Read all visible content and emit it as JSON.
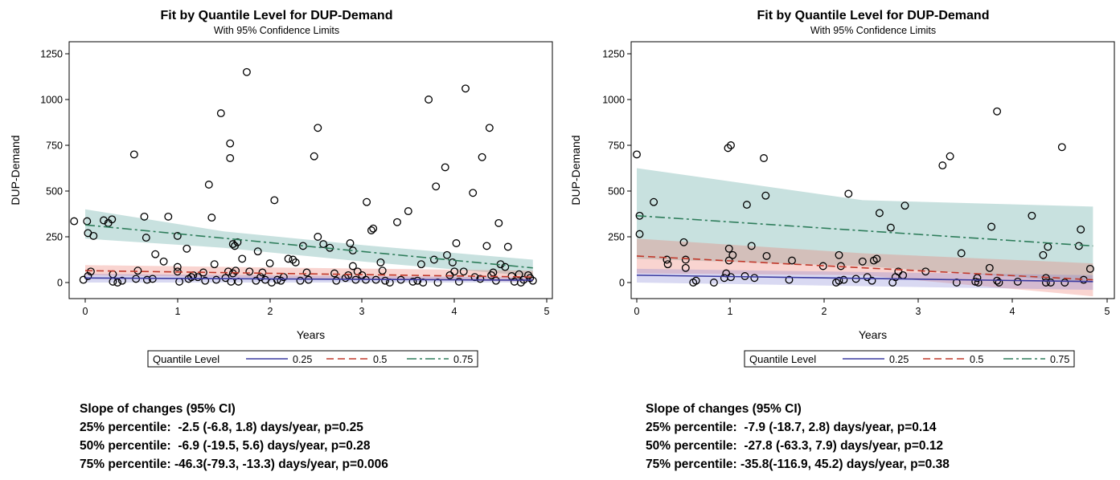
{
  "chart_data": [
    {
      "type": "scatter",
      "title": "Fit by Quantile Level for DUP-Demand",
      "subtitle": "With 95% Confidence Limits",
      "xlabel": "Years",
      "ylabel": "DUP-Demand",
      "xlim": [
        -0.1,
        4.9
      ],
      "ylim": [
        -60,
        1300
      ],
      "xticks": [
        "0",
        "1",
        "2",
        "3",
        "4",
        "5"
      ],
      "yticks": [
        "0",
        "250",
        "500",
        "750",
        "1000",
        "1250"
      ],
      "grid": false,
      "legend": {
        "title": "Quantile Level",
        "entries": [
          "0.25",
          "0.5",
          "0.75"
        ],
        "placement": "bottom"
      },
      "series": [
        {
          "name": "0.25",
          "style": "solid",
          "color": "#3a3aa0",
          "line": [
            [
              0,
              25
            ],
            [
              4.85,
              13
            ]
          ],
          "band": [
            [
              0,
              0
            ],
            [
              4.85,
              0
            ],
            [
              4.85,
              28
            ],
            [
              0,
              48
            ]
          ]
        },
        {
          "name": "0.5",
          "style": "dashed",
          "color": "#c0392b",
          "line": [
            [
              0,
              65
            ],
            [
              4.85,
              30
            ]
          ],
          "band": [
            [
              0,
              40
            ],
            [
              4.85,
              5
            ],
            [
              4.85,
              65
            ],
            [
              0,
              95
            ]
          ]
        },
        {
          "name": "0.75",
          "style": "dashdot",
          "color": "#2e7d5b",
          "line": [
            [
              0,
              315
            ],
            [
              4.85,
              80
            ]
          ],
          "band": [
            [
              0,
              240
            ],
            [
              1.5,
              190
            ],
            [
              3,
              115
            ],
            [
              4.85,
              35
            ],
            [
              4.85,
              125
            ],
            [
              3,
              205
            ],
            [
              1.5,
              280
            ],
            [
              0,
              400
            ]
          ]
        }
      ],
      "points": [
        [
          -0.12,
          335
        ],
        [
          0.02,
          335
        ],
        [
          0.2,
          340
        ],
        [
          0.25,
          325
        ],
        [
          0.29,
          345
        ],
        [
          0.03,
          270
        ],
        [
          0.09,
          255
        ],
        [
          -0.02,
          15
        ],
        [
          0.03,
          35
        ],
        [
          0.06,
          60
        ],
        [
          0.3,
          45
        ],
        [
          0.3,
          5
        ],
        [
          0.35,
          0
        ],
        [
          0.4,
          10
        ],
        [
          0.53,
          700
        ],
        [
          0.55,
          20
        ],
        [
          0.57,
          65
        ],
        [
          0.64,
          360
        ],
        [
          0.66,
          245
        ],
        [
          0.67,
          15
        ],
        [
          0.73,
          20
        ],
        [
          0.76,
          155
        ],
        [
          0.85,
          115
        ],
        [
          0.9,
          360
        ],
        [
          1.0,
          255
        ],
        [
          1.0,
          85
        ],
        [
          1.0,
          60
        ],
        [
          1.02,
          5
        ],
        [
          1.1,
          185
        ],
        [
          1.12,
          20
        ],
        [
          1.15,
          30
        ],
        [
          1.17,
          40
        ],
        [
          1.22,
          30
        ],
        [
          1.28,
          55
        ],
        [
          1.3,
          10
        ],
        [
          1.34,
          535
        ],
        [
          1.37,
          355
        ],
        [
          1.4,
          100
        ],
        [
          1.42,
          15
        ],
        [
          1.47,
          925
        ],
        [
          1.52,
          25
        ],
        [
          1.55,
          60
        ],
        [
          1.57,
          760
        ],
        [
          1.57,
          680
        ],
        [
          1.6,
          210
        ],
        [
          1.6,
          50
        ],
        [
          1.62,
          200
        ],
        [
          1.63,
          65
        ],
        [
          1.65,
          220
        ],
        [
          1.66,
          5
        ],
        [
          1.58,
          5
        ],
        [
          1.7,
          130
        ],
        [
          1.75,
          1150
        ],
        [
          1.78,
          60
        ],
        [
          1.85,
          10
        ],
        [
          1.87,
          170
        ],
        [
          1.9,
          30
        ],
        [
          1.92,
          55
        ],
        [
          1.95,
          15
        ],
        [
          2.0,
          105
        ],
        [
          2.02,
          0
        ],
        [
          2.05,
          450
        ],
        [
          2.08,
          15
        ],
        [
          2.12,
          10
        ],
        [
          2.15,
          30
        ],
        [
          2.2,
          130
        ],
        [
          2.25,
          125
        ],
        [
          2.28,
          110
        ],
        [
          2.33,
          10
        ],
        [
          2.36,
          200
        ],
        [
          2.4,
          55
        ],
        [
          2.42,
          15
        ],
        [
          2.48,
          690
        ],
        [
          2.52,
          845
        ],
        [
          2.52,
          250
        ],
        [
          2.58,
          210
        ],
        [
          2.65,
          190
        ],
        [
          2.7,
          50
        ],
        [
          2.72,
          10
        ],
        [
          2.82,
          25
        ],
        [
          2.85,
          40
        ],
        [
          2.87,
          215
        ],
        [
          2.9,
          175
        ],
        [
          2.9,
          90
        ],
        [
          2.93,
          15
        ],
        [
          2.95,
          60
        ],
        [
          3.0,
          40
        ],
        [
          3.04,
          15
        ],
        [
          3.05,
          440
        ],
        [
          3.1,
          285
        ],
        [
          3.12,
          295
        ],
        [
          3.15,
          15
        ],
        [
          3.2,
          110
        ],
        [
          3.22,
          65
        ],
        [
          3.25,
          10
        ],
        [
          3.3,
          0
        ],
        [
          3.38,
          330
        ],
        [
          3.42,
          15
        ],
        [
          3.5,
          390
        ],
        [
          3.55,
          5
        ],
        [
          3.6,
          10
        ],
        [
          3.64,
          100
        ],
        [
          3.66,
          0
        ],
        [
          3.72,
          1000
        ],
        [
          3.78,
          125
        ],
        [
          3.8,
          525
        ],
        [
          3.82,
          0
        ],
        [
          3.9,
          630
        ],
        [
          3.92,
          150
        ],
        [
          3.95,
          40
        ],
        [
          3.98,
          110
        ],
        [
          4.0,
          60
        ],
        [
          4.02,
          215
        ],
        [
          4.05,
          5
        ],
        [
          4.1,
          60
        ],
        [
          4.12,
          1060
        ],
        [
          4.2,
          490
        ],
        [
          4.22,
          30
        ],
        [
          4.28,
          20
        ],
        [
          4.3,
          685
        ],
        [
          4.35,
          200
        ],
        [
          4.38,
          845
        ],
        [
          4.4,
          40
        ],
        [
          4.42,
          55
        ],
        [
          4.45,
          10
        ],
        [
          4.48,
          325
        ],
        [
          4.5,
          100
        ],
        [
          4.55,
          85
        ],
        [
          4.58,
          195
        ],
        [
          4.62,
          35
        ],
        [
          4.65,
          5
        ],
        [
          4.7,
          45
        ],
        [
          4.72,
          0
        ],
        [
          4.75,
          15
        ],
        [
          4.8,
          40
        ],
        [
          4.82,
          25
        ],
        [
          4.85,
          10
        ]
      ],
      "annotation": {
        "heading": "Slope of changes (95% CI)",
        "lines": [
          "25% percentile:  -2.5 (-6.8, 1.8) days/year, p=0.25",
          "50% percentile:  -6.9 (-19.5, 5.6) days/year, p=0.28",
          "75% percentile: -46.3(-79.3, -13.3) days/year, p=0.006"
        ]
      }
    },
    {
      "type": "scatter",
      "title": "Fit by Quantile Level for DUP-Demand",
      "subtitle": "With 95% Confidence Limits",
      "xlabel": "Years",
      "ylabel": "DUP-Demand",
      "xlim": [
        -0.05,
        5.0
      ],
      "ylim": [
        -60,
        1300
      ],
      "xticks": [
        "0",
        "1",
        "2",
        "3",
        "4",
        "5"
      ],
      "yticks": [
        "0",
        "250",
        "500",
        "750",
        "1000",
        "1250"
      ],
      "grid": false,
      "legend": {
        "title": "Quantile Level",
        "entries": [
          "0.25",
          "0.5",
          "0.75"
        ],
        "placement": "bottom"
      },
      "series": [
        {
          "name": "0.25",
          "style": "solid",
          "color": "#3a3aa0",
          "line": [
            [
              0,
              40
            ],
            [
              4.85,
              5
            ]
          ],
          "band": [
            [
              0,
              0
            ],
            [
              4.85,
              -40
            ],
            [
              4.85,
              40
            ],
            [
              0,
              75
            ]
          ]
        },
        {
          "name": "0.5",
          "style": "dashed",
          "color": "#c0392b",
          "line": [
            [
              0,
              145
            ],
            [
              4.85,
              15
            ]
          ],
          "band": [
            [
              0,
              50
            ],
            [
              2.4,
              40
            ],
            [
              4.85,
              -75
            ],
            [
              4.85,
              105
            ],
            [
              2.4,
              160
            ],
            [
              0,
              240
            ]
          ]
        },
        {
          "name": "0.75",
          "style": "dashdot",
          "color": "#2e7d5b",
          "line": [
            [
              0,
              365
            ],
            [
              4.85,
              200
            ]
          ],
          "band": [
            [
              0,
              130
            ],
            [
              2.4,
              90
            ],
            [
              4.85,
              0
            ],
            [
              4.85,
              415
            ],
            [
              2.4,
              450
            ],
            [
              0,
              625
            ]
          ]
        }
      ],
      "points": [
        [
          0.0,
          700
        ],
        [
          0.03,
          365
        ],
        [
          0.03,
          265
        ],
        [
          0.18,
          440
        ],
        [
          0.32,
          125
        ],
        [
          0.33,
          100
        ],
        [
          0.5,
          220
        ],
        [
          0.52,
          125
        ],
        [
          0.52,
          80
        ],
        [
          0.6,
          0
        ],
        [
          0.63,
          10
        ],
        [
          0.82,
          0
        ],
        [
          0.93,
          25
        ],
        [
          0.95,
          50
        ],
        [
          0.97,
          735
        ],
        [
          1.0,
          750
        ],
        [
          0.98,
          185
        ],
        [
          0.98,
          120
        ],
        [
          1.0,
          30
        ],
        [
          1.02,
          150
        ],
        [
          1.15,
          35
        ],
        [
          1.17,
          425
        ],
        [
          1.22,
          200
        ],
        [
          1.25,
          25
        ],
        [
          1.35,
          680
        ],
        [
          1.37,
          475
        ],
        [
          1.38,
          145
        ],
        [
          1.62,
          15
        ],
        [
          1.65,
          120
        ],
        [
          1.98,
          90
        ],
        [
          2.12,
          0
        ],
        [
          2.15,
          10
        ],
        [
          2.15,
          150
        ],
        [
          2.17,
          90
        ],
        [
          2.2,
          15
        ],
        [
          2.25,
          485
        ],
        [
          2.33,
          20
        ],
        [
          2.4,
          115
        ],
        [
          2.45,
          30
        ],
        [
          2.5,
          10
        ],
        [
          2.52,
          120
        ],
        [
          2.55,
          130
        ],
        [
          2.58,
          380
        ],
        [
          2.7,
          300
        ],
        [
          2.72,
          0
        ],
        [
          2.75,
          30
        ],
        [
          2.78,
          60
        ],
        [
          2.83,
          40
        ],
        [
          2.85,
          420
        ],
        [
          3.07,
          60
        ],
        [
          3.25,
          640
        ],
        [
          3.33,
          690
        ],
        [
          3.4,
          0
        ],
        [
          3.45,
          160
        ],
        [
          3.6,
          5
        ],
        [
          3.62,
          25
        ],
        [
          3.63,
          0
        ],
        [
          3.75,
          80
        ],
        [
          3.77,
          305
        ],
        [
          3.83,
          935
        ],
        [
          3.83,
          10
        ],
        [
          3.85,
          0
        ],
        [
          4.05,
          5
        ],
        [
          4.2,
          365
        ],
        [
          4.32,
          150
        ],
        [
          4.35,
          25
        ],
        [
          4.35,
          0
        ],
        [
          4.37,
          195
        ],
        [
          4.4,
          0
        ],
        [
          4.52,
          740
        ],
        [
          4.55,
          0
        ],
        [
          4.7,
          200
        ],
        [
          4.72,
          290
        ],
        [
          4.75,
          15
        ],
        [
          4.82,
          75
        ]
      ],
      "annotation": {
        "heading": "Slope of changes (95% CI)",
        "lines": [
          "25% percentile:  -7.9 (-18.7, 2.8) days/year, p=0.14",
          "50% percentile:  -27.8 (-63.3, 7.9) days/year, p=0.12",
          "75% percentile: -35.8(-116.9, 45.2) days/year, p=0.38"
        ]
      }
    }
  ]
}
